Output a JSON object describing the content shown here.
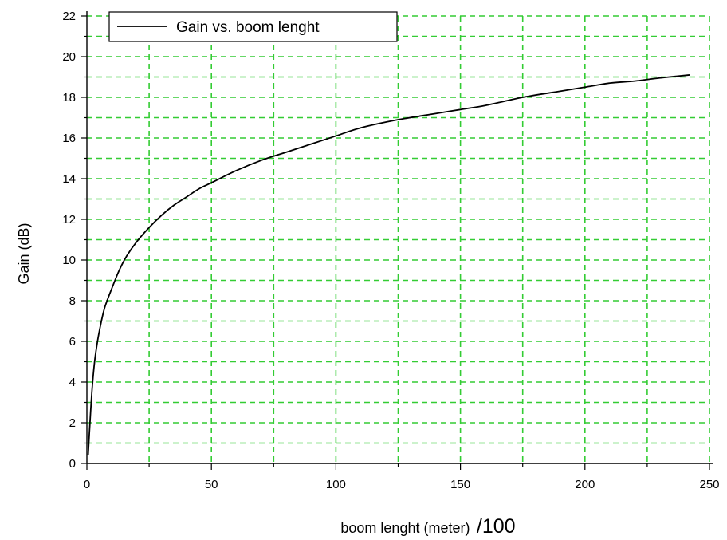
{
  "chart_data": {
    "type": "line",
    "title": "",
    "xlabel": "boom lenght (meter)",
    "xlabel_suffix": "/100",
    "ylabel": "Gain (dB)",
    "xlim": [
      0,
      250
    ],
    "ylim": [
      0,
      22
    ],
    "x_ticks": [
      0,
      50,
      100,
      150,
      200,
      250
    ],
    "x_ticks_minor": [
      25,
      75,
      125,
      175,
      225
    ],
    "y_ticks": [
      0,
      2,
      4,
      6,
      8,
      10,
      12,
      14,
      16,
      18,
      20,
      22
    ],
    "grid": true,
    "grid_color": "#33cc33",
    "legend_position": "top-left",
    "series": [
      {
        "name": "Gain vs. boom lenght",
        "color": "#000000",
        "x": [
          0.5,
          1,
          2,
          3,
          4,
          5,
          7,
          10,
          13,
          16,
          20,
          25,
          30,
          35,
          40,
          45,
          50,
          60,
          70,
          80,
          90,
          100,
          110,
          125,
          140,
          150,
          160,
          175,
          190,
          200,
          210,
          220,
          230,
          242
        ],
        "y": [
          0.4,
          1.5,
          3.5,
          4.9,
          5.8,
          6.5,
          7.6,
          8.6,
          9.5,
          10.2,
          10.9,
          11.6,
          12.2,
          12.7,
          13.1,
          13.5,
          13.8,
          14.4,
          14.9,
          15.3,
          15.7,
          16.1,
          16.5,
          16.9,
          17.2,
          17.4,
          17.6,
          18.0,
          18.3,
          18.5,
          18.7,
          18.8,
          18.95,
          19.1
        ]
      }
    ]
  }
}
